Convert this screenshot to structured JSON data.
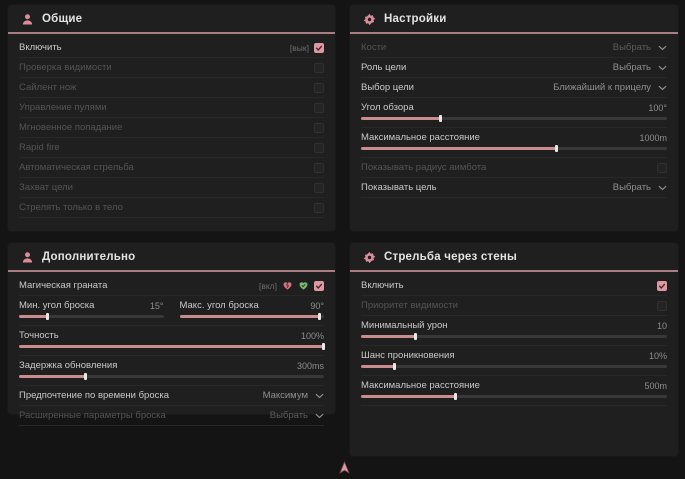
{
  "theme": {
    "accent_divider": "#a87e82",
    "accent_fill": "#c98d8d",
    "accent_checkbox": "#dc99a1",
    "green": "#79b96f",
    "panel_bg": "#1f1f1f",
    "page_bg": "#141414"
  },
  "cursor_icon": "cursor-icon",
  "panels": [
    {
      "title": "Общие",
      "icon": "person-icon",
      "rows": [
        {
          "type": "toggle",
          "label": "Включить",
          "tag": "[вык]",
          "checked": true,
          "enabled": true
        },
        {
          "type": "toggle",
          "label": "Проверка видимости",
          "checked": false,
          "enabled": false
        },
        {
          "type": "toggle",
          "label": "Сайлент нож",
          "checked": false,
          "enabled": false
        },
        {
          "type": "toggle",
          "label": "Управление пулями",
          "checked": false,
          "enabled": false
        },
        {
          "type": "toggle",
          "label": "Мгновенное попадание",
          "checked": false,
          "enabled": false
        },
        {
          "type": "toggle",
          "label": "Rapid fire",
          "checked": false,
          "enabled": false
        },
        {
          "type": "toggle",
          "label": "Автоматическая стрельба",
          "checked": false,
          "enabled": false
        },
        {
          "type": "toggle",
          "label": "Захват цели",
          "checked": false,
          "enabled": false
        },
        {
          "type": "toggle",
          "label": "Стрелять только в тело",
          "checked": false,
          "enabled": false
        }
      ]
    },
    {
      "title": "Настройки",
      "icon": "gear-icon",
      "rows": [
        {
          "type": "dropdown",
          "label": "Кости",
          "value": "Выбрать",
          "enabled": false
        },
        {
          "type": "dropdown",
          "label": "Роль цели",
          "value": "Выбрать",
          "enabled": true
        },
        {
          "type": "dropdown",
          "label": "Выбор цели",
          "value": "Ближайший к прицелу",
          "enabled": true
        },
        {
          "type": "slider",
          "label": "Угол обзора",
          "value": "100°",
          "fill": 26,
          "enabled": true
        },
        {
          "type": "slider",
          "label": "Максимальное расстояние",
          "value": "1000m",
          "fill": 64,
          "enabled": true
        },
        {
          "type": "toggle",
          "label": "Показывать радиус аимбота",
          "checked": false,
          "enabled": false
        },
        {
          "type": "dropdown",
          "label": "Показывать цель",
          "value": "Выбрать",
          "enabled": true
        }
      ]
    },
    {
      "title": "Дополнительно",
      "icon": "person-icon",
      "rows": [
        {
          "type": "toggle",
          "label": "Магическая граната",
          "tag": "[вкл]",
          "icons": [
            "heart-broken-icon",
            "heart-check-icon"
          ],
          "checked": true,
          "enabled": true
        },
        {
          "type": "sliderpair",
          "sliders": [
            {
              "label": "Мин. угол броска",
              "value": "15°",
              "fill": 20
            },
            {
              "label": "Макс. угол броска",
              "value": "90°",
              "fill": 97
            }
          ]
        },
        {
          "type": "slider",
          "label": "Точность",
          "value": "100%",
          "fill": 100,
          "enabled": true
        },
        {
          "type": "slider",
          "label": "Задержка обновления",
          "value": "300ms",
          "fill": 22,
          "enabled": true
        },
        {
          "type": "dropdown",
          "label": "Предпочтение по времени броска",
          "value": "Максимум",
          "enabled": true
        },
        {
          "type": "dropdown",
          "label": "Расширенные параметры броска",
          "value": "Выбрать",
          "enabled": false
        }
      ]
    },
    {
      "title": "Стрельба через стены",
      "icon": "gear-icon",
      "rows": [
        {
          "type": "toggle",
          "label": "Включить",
          "checked": true,
          "enabled": true
        },
        {
          "type": "toggle",
          "label": "Приоритет видимости",
          "checked": false,
          "enabled": false
        },
        {
          "type": "slider",
          "label": "Минимальный урон",
          "value": "10",
          "fill": 18,
          "enabled": true
        },
        {
          "type": "slider",
          "label": "Шанс проникновения",
          "value": "10%",
          "fill": 11,
          "enabled": true
        },
        {
          "type": "slider",
          "label": "Максимальное расстояние",
          "value": "500m",
          "fill": 31,
          "enabled": true
        }
      ]
    }
  ]
}
